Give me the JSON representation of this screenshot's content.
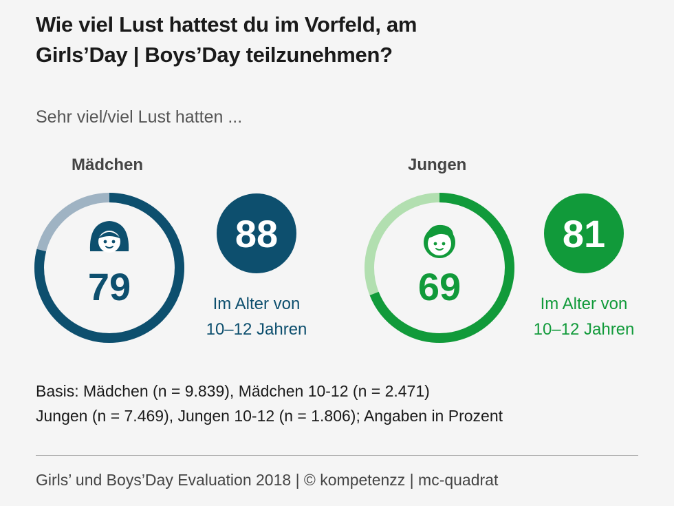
{
  "title_line1": "Wie viel Lust hattest du im Vorfeld, am",
  "title_line2": "Girls’Day | Boys’Day teilzunehmen?",
  "subtitle": "Sehr viel/viel Lust hatten ...",
  "chart_data": {
    "type": "donut",
    "unit": "%",
    "groups": [
      {
        "name": "Mädchen",
        "icon": "girl-face-icon",
        "value": 79,
        "sub_value": 88,
        "sub_label_line1": "Im Alter von",
        "sub_label_line2": "10–12 Jahren",
        "color": "#0d4f6e",
        "track_color": "#9fb3c3"
      },
      {
        "name": "Jungen",
        "icon": "boy-face-icon",
        "value": 69,
        "sub_value": 81,
        "sub_label_line1": "Im Alter von",
        "sub_label_line2": "10–12 Jahren",
        "color": "#119a3a",
        "track_color": "#b2dfb0"
      }
    ]
  },
  "note_line1": "Basis: Mädchen (n = 9.839), Mädchen 10-12 (n = 2.471)",
  "note_line2": "Jungen (n = 7.469), Jungen 10-12 (n = 1.806); Angaben in Prozent",
  "footer": "Girls’ und Boys’Day Evaluation 2018 | © kompetenzz | mc-quadrat"
}
